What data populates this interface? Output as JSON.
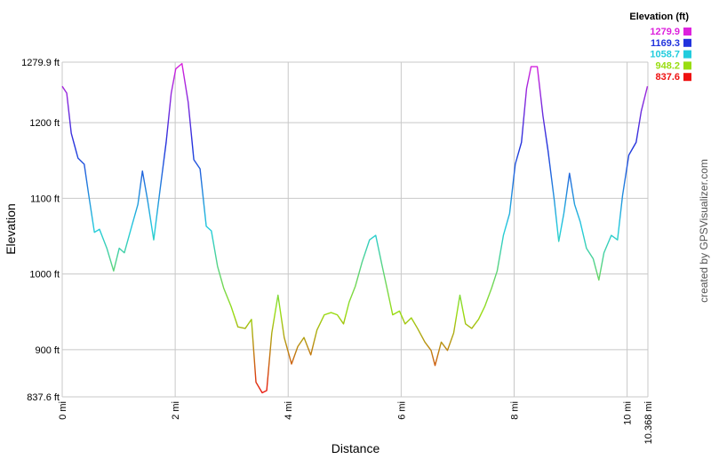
{
  "chart_data": {
    "type": "line",
    "x_label": "Distance",
    "y_label": "Elevation",
    "legend_title": "Elevation (ft)",
    "credit": "created by GPSVisualizer.com",
    "color_scale": [
      {
        "value": 1279.9,
        "color": "#dd22dd"
      },
      {
        "value": 1169.3,
        "color": "#2233dd"
      },
      {
        "value": 1058.7,
        "color": "#22ccdd"
      },
      {
        "value": 948.2,
        "color": "#99dd11"
      },
      {
        "value": 837.6,
        "color": "#ee1111"
      }
    ],
    "xlim": [
      0,
      10.368
    ],
    "ylim": [
      837.6,
      1279.9
    ],
    "xticks": [
      {
        "value": 0,
        "label": "0 mi"
      },
      {
        "value": 2,
        "label": "2 mi"
      },
      {
        "value": 4,
        "label": "4 mi"
      },
      {
        "value": 6,
        "label": "6 mi"
      },
      {
        "value": 8,
        "label": "8 mi"
      },
      {
        "value": 10,
        "label": "10 mi"
      },
      {
        "value": 10.368,
        "label": "10.368 mi"
      }
    ],
    "yticks": [
      {
        "value": 837.6,
        "label": "837.6 ft"
      },
      {
        "value": 900,
        "label": "900 ft"
      },
      {
        "value": 1000,
        "label": "1000 ft"
      },
      {
        "value": 1100,
        "label": "1100 ft"
      },
      {
        "value": 1200,
        "label": "1200 ft"
      },
      {
        "value": 1279.9,
        "label": "1279.9 ft"
      }
    ],
    "grid": true,
    "series": [
      {
        "name": "Elevation",
        "x": [
          0,
          0.08,
          0.16,
          0.28,
          0.39,
          0.47,
          0.57,
          0.66,
          0.79,
          0.91,
          1.01,
          1.1,
          1.23,
          1.34,
          1.42,
          1.51,
          1.62,
          1.73,
          1.84,
          1.93,
          2.01,
          2.12,
          2.23,
          2.33,
          2.44,
          2.55,
          2.64,
          2.75,
          2.86,
          2.99,
          3.11,
          3.24,
          3.35,
          3.43,
          3.54,
          3.62,
          3.71,
          3.82,
          3.93,
          4.06,
          4.17,
          4.28,
          4.4,
          4.51,
          4.64,
          4.76,
          4.87,
          4.98,
          5.08,
          5.19,
          5.31,
          5.44,
          5.55,
          5.66,
          5.75,
          5.85,
          5.97,
          6.07,
          6.18,
          6.29,
          6.42,
          6.53,
          6.6,
          6.71,
          6.82,
          6.93,
          7.04,
          7.14,
          7.25,
          7.37,
          7.48,
          7.6,
          7.7,
          7.81,
          7.92,
          8.02,
          8.13,
          8.22,
          8.3,
          8.41,
          8.51,
          8.6,
          8.71,
          8.79,
          8.88,
          8.98,
          9.07,
          9.17,
          9.28,
          9.4,
          9.5,
          9.59,
          9.72,
          9.83,
          9.92,
          10.03,
          10.16,
          10.25,
          10.36
        ],
        "values": [
          1248,
          1239,
          1186,
          1153,
          1145,
          1104,
          1055,
          1059,
          1034,
          1004,
          1034,
          1028,
          1063,
          1092,
          1136,
          1098,
          1045,
          1110,
          1174,
          1239,
          1271,
          1278,
          1227,
          1151,
          1139,
          1063,
          1057,
          1010,
          981,
          957,
          930,
          928,
          940,
          857,
          843,
          846,
          922,
          972,
          916,
          881,
          904,
          916,
          893,
          926,
          946,
          949,
          946,
          934,
          963,
          984,
          1016,
          1045,
          1051,
          1012,
          981,
          946,
          951,
          934,
          942,
          928,
          910,
          899,
          879,
          910,
          899,
          922,
          972,
          934,
          928,
          940,
          957,
          981,
          1004,
          1051,
          1080,
          1145,
          1174,
          1245,
          1274,
          1274,
          1209,
          1163,
          1098,
          1043,
          1080,
          1133,
          1092,
          1069,
          1034,
          1020,
          992,
          1028,
          1051,
          1045,
          1104,
          1157,
          1174,
          1215,
          1248
        ]
      }
    ]
  }
}
